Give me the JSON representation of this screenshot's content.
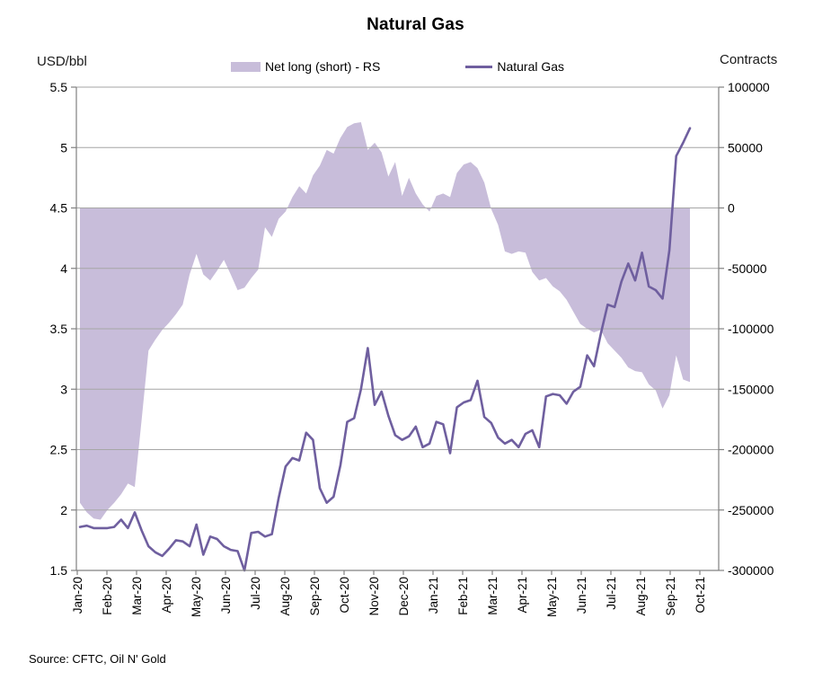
{
  "title": "Natural Gas",
  "left_axis_label": "USD/bbl",
  "right_axis_label": "Contracts",
  "source": "Source: CFTC, Oil N' Gold",
  "legend": [
    {
      "label": "Net long (short) - RS",
      "type": "area"
    },
    {
      "label": "Natural Gas",
      "type": "line"
    }
  ],
  "colors": {
    "area_fill": "#C8BDDA",
    "line": "#6F5F9F",
    "gridline": "#A6A6A6",
    "axis": "#808080",
    "text": "#000000"
  },
  "chart_data": {
    "type": "area",
    "subtype": "weekly line (left axis) + area (right axis)",
    "title": "Natural Gas",
    "x_tick_labels": [
      "Jan-20",
      "Feb-20",
      "Mar-20",
      "Apr-20",
      "May-20",
      "Jun-20",
      "Jul-20",
      "Aug-20",
      "Sep-20",
      "Oct-20",
      "Nov-20",
      "Dec-20",
      "Jan-21",
      "Feb-21",
      "Mar-21",
      "Apr-21",
      "May-21",
      "Jun-21",
      "Jul-21",
      "Aug-21",
      "Sep-21",
      "Oct-21"
    ],
    "left_axis": {
      "label": "USD/bbl",
      "min": 1.5,
      "max": 5.5,
      "tick_labels": [
        "5.5",
        "5",
        "4.5",
        "4",
        "3.5",
        "3",
        "2.5",
        "2",
        "1.5"
      ],
      "tick_values": [
        5.5,
        5,
        4.5,
        4,
        3.5,
        3,
        2.5,
        2,
        1.5
      ]
    },
    "right_axis": {
      "label": "Contracts",
      "min": -300000,
      "max": 100000,
      "tick_labels": [
        "100000",
        "50000",
        "0",
        "-50000",
        "-100000",
        "-150000",
        "-200000",
        "-250000",
        "-300000"
      ],
      "tick_values": [
        100000,
        50000,
        0,
        -50000,
        -100000,
        -150000,
        -200000,
        -250000,
        -300000
      ]
    },
    "grid": true,
    "legend_position": "top-center",
    "series": [
      {
        "name": "Net long (short) - RS",
        "type": "area",
        "axis": "right",
        "values": [
          -244000,
          -252000,
          -257000,
          -258000,
          -250000,
          -244000,
          -237000,
          -228000,
          -231000,
          -175000,
          -118000,
          -109000,
          -101000,
          -95000,
          -88000,
          -80000,
          -55000,
          -38000,
          -55000,
          -60000,
          -52000,
          -43000,
          -55000,
          -68000,
          -66000,
          -58000,
          -51000,
          -16000,
          -24000,
          -9000,
          -3000,
          9000,
          18000,
          12000,
          27000,
          35000,
          48000,
          45000,
          58000,
          67000,
          70000,
          71000,
          48000,
          54000,
          46000,
          26000,
          38000,
          10000,
          25000,
          12000,
          3000,
          -3000,
          10000,
          12000,
          9000,
          29000,
          36000,
          38000,
          33000,
          21000,
          -1000,
          -14000,
          -36000,
          -38000,
          -36000,
          -37000,
          -53000,
          -60000,
          -58000,
          -65000,
          -69000,
          -76000,
          -86000,
          -96000,
          -100000,
          -103000,
          -101000,
          -112000,
          -118000,
          -124000,
          -132000,
          -135000,
          -136000,
          -146000,
          -151000,
          -166000,
          -155000,
          -122000,
          -142000,
          -144000
        ]
      },
      {
        "name": "Natural Gas",
        "type": "line",
        "axis": "left",
        "values": [
          1.86,
          1.87,
          1.85,
          1.85,
          1.85,
          1.86,
          1.92,
          1.85,
          1.98,
          1.83,
          1.7,
          1.65,
          1.62,
          1.68,
          1.75,
          1.74,
          1.7,
          1.88,
          1.63,
          1.78,
          1.76,
          1.7,
          1.67,
          1.66,
          1.5,
          1.81,
          1.82,
          1.78,
          1.8,
          2.1,
          2.36,
          2.43,
          2.41,
          2.64,
          2.58,
          2.18,
          2.06,
          2.11,
          2.37,
          2.73,
          2.76,
          3.0,
          3.34,
          2.87,
          2.98,
          2.78,
          2.62,
          2.58,
          2.61,
          2.69,
          2.52,
          2.55,
          2.73,
          2.71,
          2.47,
          2.85,
          2.89,
          2.91,
          3.07,
          2.77,
          2.72,
          2.6,
          2.55,
          2.58,
          2.52,
          2.63,
          2.66,
          2.52,
          2.94,
          2.96,
          2.95,
          2.88,
          2.98,
          3.02,
          3.28,
          3.19,
          3.46,
          3.7,
          3.68,
          3.89,
          4.04,
          3.9,
          4.13,
          3.85,
          3.82,
          3.75,
          4.15,
          4.93,
          5.04,
          5.16
        ]
      }
    ]
  }
}
